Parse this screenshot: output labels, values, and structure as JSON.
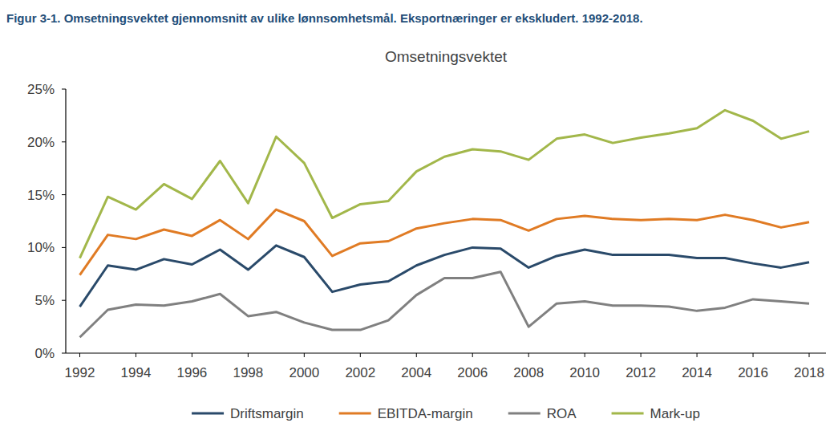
{
  "chart_data": {
    "type": "line",
    "title": "Figur 3-1. Omsetningsvektet gjennomsnitt av ulike lønnsomhetsmål. Eksportnæringer er ekskludert. 1992-2018.",
    "subtitle": "Omsetningsvektet",
    "x": [
      1992,
      1993,
      1994,
      1995,
      1996,
      1997,
      1998,
      1999,
      2000,
      2001,
      2002,
      2003,
      2004,
      2005,
      2006,
      2007,
      2008,
      2009,
      2010,
      2011,
      2012,
      2013,
      2014,
      2015,
      2016,
      2017,
      2018
    ],
    "xlim": [
      1991.5,
      2018.6
    ],
    "xticks": [
      1992,
      1994,
      1996,
      1998,
      2000,
      2002,
      2004,
      2006,
      2008,
      2010,
      2012,
      2014,
      2016,
      2018
    ],
    "ylim": [
      0,
      25
    ],
    "yticks": [
      {
        "value": 0,
        "label": "0%"
      },
      {
        "value": 5,
        "label": "5%"
      },
      {
        "value": 10,
        "label": "10%"
      },
      {
        "value": 15,
        "label": "15%"
      },
      {
        "value": 20,
        "label": "20%"
      },
      {
        "value": 25,
        "label": "25%"
      }
    ],
    "grid": false,
    "legend": "bottom",
    "series": [
      {
        "name": "Driftsmargin",
        "color": "#2a4a6a",
        "values": [
          4.4,
          8.3,
          7.9,
          8.9,
          8.4,
          9.8,
          7.9,
          10.2,
          9.1,
          5.8,
          6.5,
          6.8,
          8.3,
          9.3,
          10.0,
          9.9,
          8.1,
          9.2,
          9.8,
          9.3,
          9.3,
          9.3,
          9.0,
          9.0,
          8.5,
          8.1,
          8.6
        ]
      },
      {
        "name": "EBITDA-margin",
        "color": "#e07b24",
        "values": [
          7.4,
          11.2,
          10.8,
          11.7,
          11.1,
          12.6,
          10.8,
          13.6,
          12.5,
          9.2,
          10.4,
          10.6,
          11.8,
          12.3,
          12.7,
          12.6,
          11.6,
          12.7,
          13.0,
          12.7,
          12.6,
          12.7,
          12.6,
          13.1,
          12.6,
          11.9,
          12.4
        ]
      },
      {
        "name": "ROA",
        "color": "#808080",
        "values": [
          1.5,
          4.1,
          4.6,
          4.5,
          4.9,
          5.6,
          3.5,
          3.9,
          2.9,
          2.2,
          2.2,
          3.1,
          5.5,
          7.1,
          7.1,
          7.7,
          2.5,
          4.7,
          4.9,
          4.5,
          4.5,
          4.4,
          4.0,
          4.3,
          5.1,
          4.9,
          4.7
        ]
      },
      {
        "name": "Mark-up",
        "color": "#a2b74a",
        "values": [
          9.0,
          14.8,
          13.6,
          16.0,
          14.6,
          18.2,
          14.2,
          20.5,
          18.0,
          12.8,
          14.1,
          14.4,
          17.2,
          18.6,
          19.3,
          19.1,
          18.3,
          20.3,
          20.7,
          19.9,
          20.4,
          20.8,
          21.3,
          23.0,
          22.0,
          20.3,
          21.0
        ]
      }
    ]
  }
}
